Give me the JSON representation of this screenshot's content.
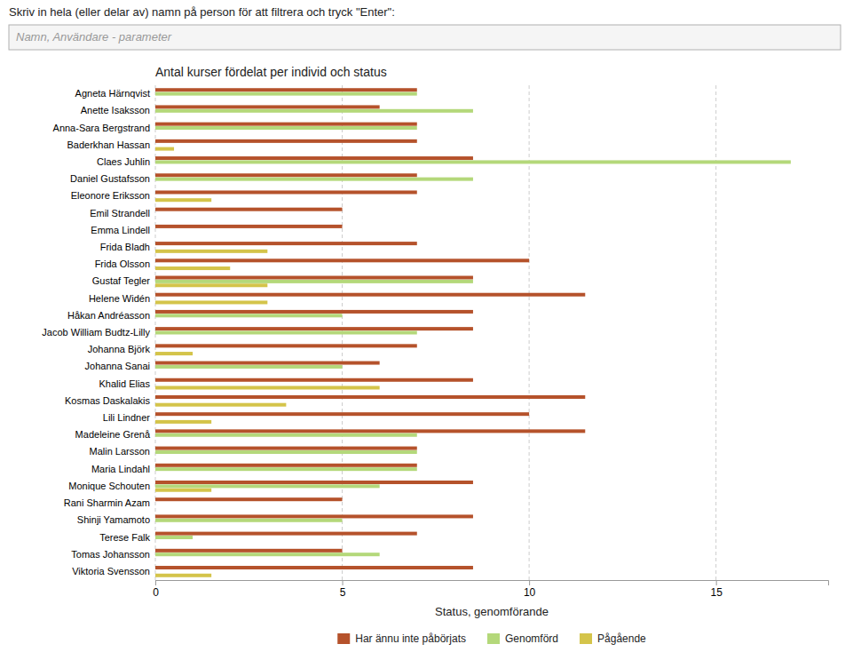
{
  "chart_data": {
    "type": "bar",
    "orientation": "horizontal",
    "title": "Antal kurser fördelat per individ och status",
    "subtitle": "Skriv in hela (eller delar av) namn på person för att filtrera och tryck \"Enter\":",
    "annotations": [
      "Namn, Användare - parameter"
    ],
    "xlabel": "Status, genomförande",
    "categories": [
      "Agneta Härnqvist",
      "Anette Isaksson",
      "Anna-Sara Bergstrand",
      "Baderkhan Hassan",
      "Claes Juhlin",
      "Daniel Gustafsson",
      "Eleonore Eriksson",
      "Emil Strandell",
      "Emma Lindell",
      "Frida Bladh",
      "Frida Olsson",
      "Gustaf Tegler",
      "Helene Widén",
      "Håkan Andréasson",
      "Jacob William Budtz-Lilly",
      "Johanna Björk",
      "Johanna Sanai",
      "Khalid Elias",
      "Kosmas Daskalakis",
      "Lili Lindner",
      "Madeleine Grenå",
      "Malin Larsson",
      "Maria Lindahl",
      "Monique Schouten",
      "Rani Sharmin Azam",
      "Shinji Yamamoto",
      "Terese Falk",
      "Tomas Johansson",
      "Viktoria Svensson"
    ],
    "series": [
      {
        "name": "Har ännu inte påbörjats",
        "color": "#b5522b",
        "values": [
          7,
          6,
          7,
          7,
          8.5,
          7,
          7,
          5,
          5,
          7,
          10,
          8.5,
          11.5,
          8.5,
          8.5,
          7,
          6,
          8.5,
          11.5,
          10,
          11.5,
          7,
          7,
          8.5,
          5,
          8.5,
          7,
          5,
          8.5
        ]
      },
      {
        "name": "Genomförd",
        "color": "#b4d87a",
        "values": [
          7,
          8.5,
          7,
          0,
          17,
          8.5,
          0,
          0,
          0,
          0,
          0,
          8.5,
          0,
          5,
          7,
          0,
          5,
          0,
          0,
          0,
          7,
          7,
          7,
          6,
          0,
          5,
          1,
          6,
          0
        ]
      },
      {
        "name": "Pågående",
        "color": "#d4c44a",
        "values": [
          0,
          0,
          0,
          0.5,
          0,
          0,
          1.5,
          0,
          0,
          3,
          2,
          3,
          3,
          0,
          0,
          1,
          0,
          6,
          3.5,
          1.5,
          0,
          0,
          0,
          1.5,
          0,
          0,
          0,
          0,
          1.5
        ]
      }
    ],
    "xlim": [
      0,
      18
    ],
    "xticks": [
      0,
      5,
      10,
      15
    ],
    "grid": true,
    "legend": "bottom"
  }
}
